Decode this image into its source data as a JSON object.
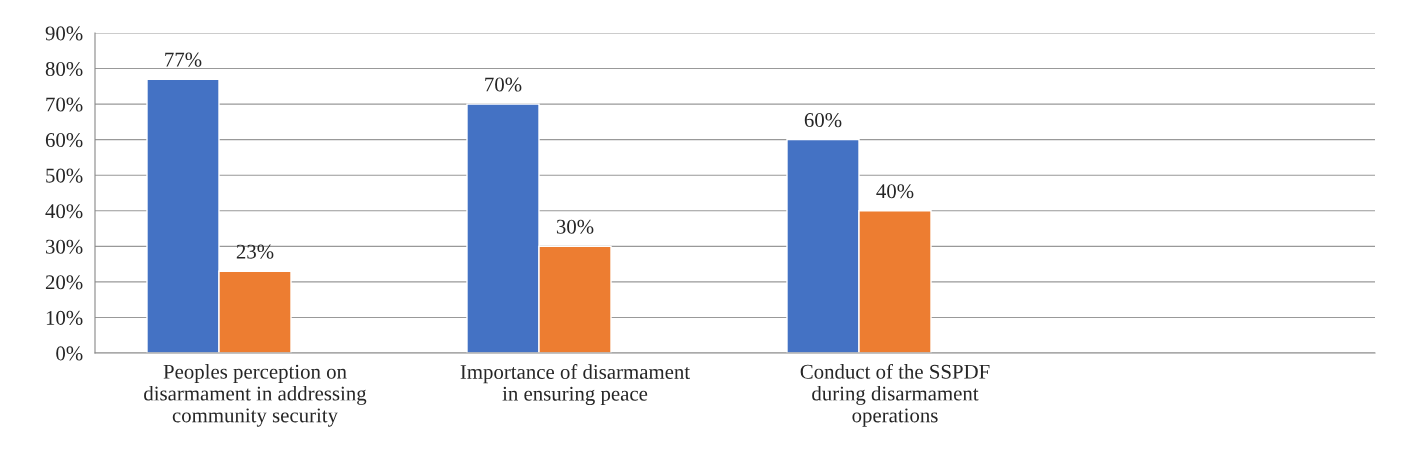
{
  "chart_data": {
    "type": "bar",
    "categories": [
      "Peoples perception on\ndisarmament in addressing\ncommunity security",
      "Importance of disarmament\nin ensuring peace",
      "Conduct of the SSPDF\nduring disarmament\noperations",
      null
    ],
    "series": [
      {
        "color": "#4472c4",
        "values": [
          77,
          70,
          60,
          null
        ],
        "value_labels": [
          "77%",
          "70%",
          "60%",
          null
        ]
      },
      {
        "color": "#ed7d31",
        "values": [
          23,
          30,
          40,
          null
        ],
        "value_labels": [
          "23%",
          "30%",
          "40%",
          null
        ]
      }
    ],
    "ylim": [
      0,
      90
    ],
    "yticks": [
      {
        "value": 0,
        "label": "0%"
      },
      {
        "value": 10,
        "label": "10%"
      },
      {
        "value": 20,
        "label": "20%"
      },
      {
        "value": 30,
        "label": "30%"
      },
      {
        "value": 40,
        "label": "40%"
      },
      {
        "value": 50,
        "label": "50%"
      },
      {
        "value": 60,
        "label": "60%"
      },
      {
        "value": 70,
        "label": "70%"
      },
      {
        "value": 80,
        "label": "80%"
      },
      {
        "value": 90,
        "label": "90%"
      }
    ],
    "grid": "y",
    "legend": false
  }
}
